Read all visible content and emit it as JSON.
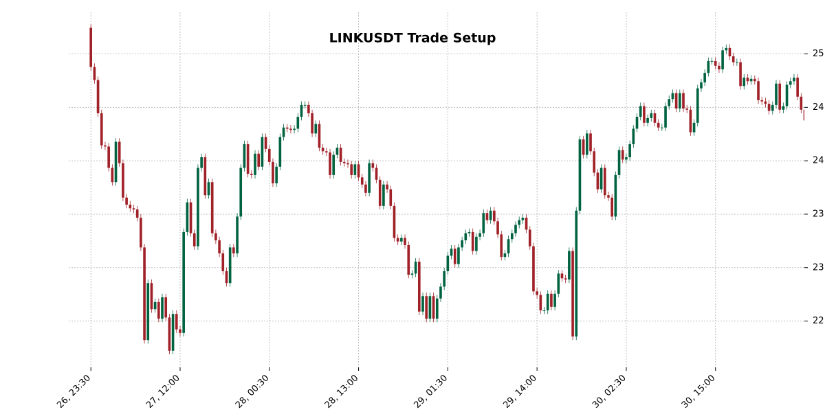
{
  "chart_data": {
    "type": "candlestick",
    "title": "LINKUSDT Trade Setup",
    "up_color": "#006340",
    "down_color": "#a02128",
    "grid": true,
    "xlim": [
      -6.2,
      199.9
    ],
    "ylim": [
      21.91,
      24.9
    ],
    "xticks": [
      {
        "value": 0,
        "label": "26, 23:30"
      },
      {
        "value": 25,
        "label": "27, 12:00"
      },
      {
        "value": 50,
        "label": "28, 00:30"
      },
      {
        "value": 75,
        "label": "28, 13:00"
      },
      {
        "value": 100,
        "label": "29, 01:30"
      },
      {
        "value": 125,
        "label": "29, 14:00"
      },
      {
        "value": 150,
        "label": "30, 02:30"
      },
      {
        "value": 175,
        "label": "30, 15:00"
      }
    ],
    "yticks": [
      {
        "value": 22.3,
        "label": "22"
      },
      {
        "value": 22.75,
        "label": "23"
      },
      {
        "value": 23.2,
        "label": "23"
      },
      {
        "value": 23.65,
        "label": "24"
      },
      {
        "value": 24.1,
        "label": "24"
      },
      {
        "value": 24.55,
        "label": "25"
      }
    ],
    "open": [
      24.77,
      24.44,
      24.33,
      24.05,
      23.78,
      23.77,
      23.59,
      23.47,
      23.81,
      23.63,
      23.34,
      23.28,
      23.25,
      23.24,
      23.17,
      22.92,
      22.14,
      22.62,
      22.4,
      22.46,
      22.32,
      22.5,
      22.33,
      22.05,
      22.36,
      22.23,
      22.2,
      23.05,
      23.3,
      23.04,
      22.93,
      23.59,
      23.68,
      23.36,
      23.47,
      23.04,
      22.98,
      22.87,
      22.72,
      22.62,
      22.92,
      22.87,
      23.18,
      23.59,
      23.79,
      23.54,
      23.53,
      23.71,
      23.6,
      23.85,
      23.75,
      23.64,
      23.46,
      23.6,
      23.85,
      23.93,
      23.92,
      23.91,
      23.92,
      24.02,
      24.12,
      24.12,
      24.05,
      23.88,
      23.96,
      23.76,
      23.73,
      23.72,
      23.53,
      23.7,
      23.76,
      23.64,
      23.63,
      23.62,
      23.53,
      23.62,
      23.51,
      23.45,
      23.38,
      23.63,
      23.59,
      23.49,
      23.27,
      23.45,
      23.41,
      23.27,
      23.0,
      22.97,
      23.0,
      22.94,
      22.69,
      22.7,
      22.8,
      22.38,
      22.51,
      22.32,
      22.51,
      22.32,
      22.49,
      22.59,
      22.72,
      22.85,
      22.91,
      22.78,
      22.92,
      22.98,
      23.04,
      23.05,
      22.89,
      23.01,
      23.04,
      23.21,
      23.15,
      23.23,
      23.14,
      23.03,
      22.84,
      22.87,
      22.99,
      23.04,
      23.11,
      23.15,
      23.17,
      23.07,
      22.93,
      22.55,
      22.52,
      22.39,
      22.39,
      22.53,
      22.42,
      22.53,
      22.7,
      22.66,
      22.65,
      22.89,
      22.17,
      23.23,
      23.83,
      23.7,
      23.88,
      23.73,
      23.55,
      23.41,
      23.59,
      23.36,
      23.34,
      23.18,
      23.53,
      23.74,
      23.66,
      23.68,
      23.79,
      23.92,
      24.02,
      24.11,
      23.97,
      24.01,
      24.05,
      23.97,
      23.93,
      23.93,
      24.11,
      24.17,
      24.22,
      24.09,
      24.22,
      24.09,
      24.08,
      23.89,
      23.97,
      24.26,
      24.31,
      24.39,
      24.49,
      24.49,
      24.45,
      24.42,
      24.58,
      24.6,
      24.53,
      24.48,
      24.48,
      24.28,
      24.35,
      24.32,
      24.34,
      24.32,
      24.16,
      24.15,
      24.13,
      24.07,
      24.12,
      24.3,
      24.08,
      24.11,
      24.29,
      24.32,
      24.35,
      24.19,
      24.08
    ],
    "high": [
      24.8,
      24.47,
      24.36,
      24.08,
      23.81,
      23.8,
      23.62,
      23.84,
      23.84,
      23.66,
      23.37,
      23.31,
      23.28,
      23.27,
      23.2,
      22.95,
      22.65,
      22.65,
      22.49,
      22.49,
      22.53,
      22.53,
      22.36,
      22.39,
      22.39,
      22.26,
      23.08,
      23.33,
      23.33,
      23.07,
      23.62,
      23.71,
      23.71,
      23.5,
      23.5,
      23.07,
      23.01,
      22.9,
      22.75,
      22.95,
      22.95,
      23.21,
      23.62,
      23.82,
      23.82,
      23.57,
      23.74,
      23.74,
      23.88,
      23.88,
      23.78,
      23.67,
      23.63,
      23.88,
      23.96,
      23.96,
      23.95,
      23.95,
      24.05,
      24.15,
      24.15,
      24.15,
      24.08,
      23.99,
      23.99,
      23.79,
      23.76,
      23.75,
      23.73,
      23.79,
      23.79,
      23.67,
      23.66,
      23.65,
      23.65,
      23.65,
      23.54,
      23.48,
      23.66,
      23.66,
      23.62,
      23.52,
      23.48,
      23.48,
      23.44,
      23.3,
      23.03,
      23.03,
      23.03,
      22.97,
      22.73,
      22.83,
      22.83,
      22.54,
      22.54,
      22.54,
      22.54,
      22.52,
      22.62,
      22.75,
      22.88,
      22.94,
      22.94,
      22.95,
      23.01,
      23.07,
      23.08,
      23.08,
      23.04,
      23.07,
      23.24,
      23.24,
      23.26,
      23.26,
      23.17,
      23.06,
      22.9,
      23.02,
      23.07,
      23.14,
      23.18,
      23.2,
      23.2,
      23.1,
      22.96,
      22.58,
      22.55,
      22.42,
      22.56,
      22.56,
      22.56,
      22.73,
      22.73,
      22.69,
      22.92,
      22.92,
      23.26,
      23.86,
      23.86,
      23.91,
      23.91,
      23.76,
      23.58,
      23.62,
      23.62,
      23.39,
      23.37,
      23.56,
      23.77,
      23.77,
      23.71,
      23.82,
      23.95,
      24.05,
      24.14,
      24.14,
      24.04,
      24.08,
      24.08,
      24.0,
      23.96,
      24.14,
      24.2,
      24.25,
      24.25,
      24.25,
      24.25,
      24.12,
      24.11,
      24.0,
      24.29,
      24.34,
      24.42,
      24.52,
      24.52,
      24.52,
      24.48,
      24.61,
      24.63,
      24.63,
      24.56,
      24.51,
      24.51,
      24.38,
      24.38,
      24.37,
      24.37,
      24.35,
      24.19,
      24.18,
      24.16,
      24.15,
      24.33,
      24.33,
      24.14,
      24.32,
      24.35,
      24.38,
      24.38,
      24.22,
      24.11
    ],
    "low": [
      24.41,
      24.3,
      24.02,
      23.75,
      23.74,
      23.56,
      23.44,
      23.44,
      23.6,
      23.31,
      23.25,
      23.22,
      23.21,
      23.14,
      22.89,
      22.11,
      22.11,
      22.37,
      22.37,
      22.29,
      22.29,
      22.3,
      22.02,
      22.02,
      22.2,
      22.17,
      22.17,
      23.02,
      23.01,
      22.9,
      22.9,
      23.56,
      23.33,
      23.33,
      23.01,
      22.95,
      22.84,
      22.69,
      22.59,
      22.59,
      22.84,
      22.84,
      23.15,
      23.56,
      23.51,
      23.5,
      23.5,
      23.57,
      23.57,
      23.72,
      23.61,
      23.43,
      23.43,
      23.57,
      23.82,
      23.89,
      23.88,
      23.88,
      23.89,
      23.99,
      24.09,
      24.02,
      23.85,
      23.85,
      23.73,
      23.7,
      23.69,
      23.5,
      23.5,
      23.67,
      23.61,
      23.6,
      23.59,
      23.5,
      23.5,
      23.48,
      23.42,
      23.35,
      23.35,
      23.56,
      23.46,
      23.24,
      23.24,
      23.38,
      23.24,
      22.97,
      22.94,
      22.94,
      22.91,
      22.66,
      22.66,
      22.67,
      22.35,
      22.35,
      22.29,
      22.29,
      22.29,
      22.29,
      22.46,
      22.56,
      22.69,
      22.82,
      22.75,
      22.75,
      22.89,
      22.95,
      23.01,
      22.86,
      22.86,
      22.98,
      23.01,
      23.12,
      23.12,
      23.11,
      23.0,
      22.81,
      22.81,
      22.84,
      22.96,
      23.01,
      23.08,
      23.12,
      23.04,
      22.9,
      22.52,
      22.49,
      22.36,
      22.36,
      22.36,
      22.39,
      22.39,
      22.5,
      22.63,
      22.62,
      22.62,
      22.14,
      22.14,
      23.2,
      23.67,
      23.67,
      23.7,
      23.52,
      23.38,
      23.38,
      23.33,
      23.31,
      23.15,
      23.15,
      23.5,
      23.63,
      23.63,
      23.65,
      23.76,
      23.89,
      23.99,
      23.94,
      23.94,
      23.98,
      23.94,
      23.9,
      23.9,
      23.9,
      24.08,
      24.14,
      24.06,
      24.06,
      24.06,
      24.05,
      23.86,
      23.86,
      23.94,
      24.23,
      24.28,
      24.36,
      24.46,
      24.42,
      24.39,
      24.39,
      24.55,
      24.5,
      24.45,
      24.45,
      24.25,
      24.25,
      24.29,
      24.29,
      24.29,
      24.13,
      24.12,
      24.1,
      24.04,
      24.04,
      24.09,
      24.05,
      24.05,
      24.08,
      24.26,
      24.29,
      24.16,
      24.05,
      23.96
    ],
    "close": [
      24.44,
      24.33,
      24.05,
      23.78,
      23.77,
      23.59,
      23.47,
      23.81,
      23.63,
      23.34,
      23.28,
      23.25,
      23.24,
      23.17,
      22.92,
      22.14,
      22.62,
      22.4,
      22.46,
      22.32,
      22.5,
      22.33,
      22.05,
      22.36,
      22.23,
      22.2,
      23.05,
      23.3,
      23.04,
      22.93,
      23.59,
      23.68,
      23.36,
      23.47,
      23.04,
      22.98,
      22.87,
      22.72,
      22.62,
      22.92,
      22.87,
      23.18,
      23.59,
      23.79,
      23.54,
      23.53,
      23.71,
      23.6,
      23.85,
      23.75,
      23.64,
      23.46,
      23.6,
      23.85,
      23.93,
      23.92,
      23.91,
      23.92,
      24.02,
      24.12,
      24.12,
      24.05,
      23.88,
      23.96,
      23.76,
      23.73,
      23.72,
      23.53,
      23.7,
      23.76,
      23.64,
      23.63,
      23.62,
      23.53,
      23.62,
      23.51,
      23.45,
      23.38,
      23.63,
      23.59,
      23.49,
      23.27,
      23.45,
      23.41,
      23.27,
      23.0,
      22.97,
      23.0,
      22.94,
      22.69,
      22.7,
      22.8,
      22.38,
      22.51,
      22.32,
      22.51,
      22.32,
      22.49,
      22.59,
      22.72,
      22.85,
      22.91,
      22.78,
      22.92,
      22.98,
      23.04,
      23.05,
      22.89,
      23.01,
      23.04,
      23.21,
      23.15,
      23.23,
      23.14,
      23.03,
      22.84,
      22.87,
      22.99,
      23.04,
      23.11,
      23.15,
      23.17,
      23.07,
      22.93,
      22.55,
      22.52,
      22.39,
      22.39,
      22.53,
      22.42,
      22.53,
      22.7,
      22.66,
      22.65,
      22.89,
      22.17,
      23.23,
      23.83,
      23.7,
      23.88,
      23.73,
      23.55,
      23.41,
      23.59,
      23.36,
      23.34,
      23.18,
      23.53,
      23.74,
      23.66,
      23.68,
      23.79,
      23.92,
      24.02,
      24.11,
      23.97,
      24.01,
      24.05,
      23.97,
      23.93,
      23.93,
      24.11,
      24.17,
      24.22,
      24.09,
      24.22,
      24.09,
      24.08,
      23.89,
      23.97,
      24.26,
      24.31,
      24.39,
      24.49,
      24.49,
      24.45,
      24.42,
      24.58,
      24.6,
      24.53,
      24.48,
      24.48,
      24.28,
      24.35,
      24.32,
      24.34,
      24.32,
      24.16,
      24.15,
      24.13,
      24.07,
      24.12,
      24.3,
      24.08,
      24.11,
      24.29,
      24.32,
      24.35,
      24.19,
      24.08,
      23.99
    ]
  }
}
